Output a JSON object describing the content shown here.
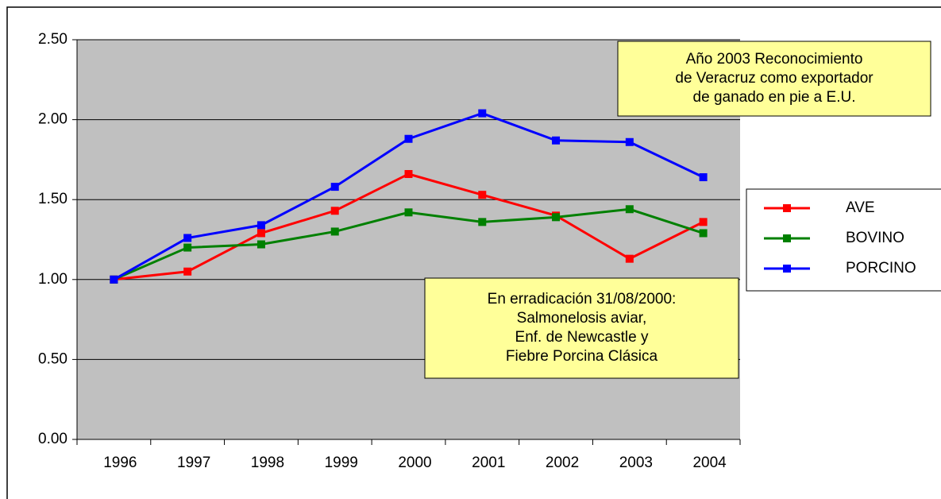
{
  "chart_data": {
    "type": "line",
    "categories": [
      "1996",
      "1997",
      "1998",
      "1999",
      "2000",
      "2001",
      "2002",
      "2003",
      "2004"
    ],
    "series": [
      {
        "name": "AVE",
        "color": "#ff0000",
        "values": [
          1.0,
          1.05,
          1.29,
          1.43,
          1.66,
          1.53,
          1.4,
          1.13,
          1.36
        ]
      },
      {
        "name": "BOVINO",
        "color": "#008000",
        "values": [
          1.0,
          1.2,
          1.22,
          1.3,
          1.42,
          1.36,
          1.39,
          1.44,
          1.29
        ]
      },
      {
        "name": "PORCINO",
        "color": "#0000ff",
        "values": [
          1.0,
          1.26,
          1.34,
          1.58,
          1.88,
          2.04,
          1.87,
          1.86,
          1.64
        ]
      }
    ],
    "ylim": [
      0,
      2.5
    ],
    "yticks": [
      {
        "value": 0,
        "label": "0.00"
      },
      {
        "value": 0.5,
        "label": "0.50"
      },
      {
        "value": 1,
        "label": "1.00"
      },
      {
        "value": 1.5,
        "label": "1.50"
      },
      {
        "value": 2,
        "label": "2.00"
      },
      {
        "value": 2.5,
        "label": "2.50"
      }
    ],
    "grid": true,
    "legend": "right",
    "annotations": [
      [
        "Año 2003 Reconocimiento",
        "de Veracruz como  exportador",
        "de ganado en pie a E.U."
      ],
      [
        "En erradicación 31/08/2000:",
        "Salmonelosis aviar,",
        "Enf. de Newcastle y",
        "Fiebre Porcina Clásica"
      ]
    ]
  }
}
